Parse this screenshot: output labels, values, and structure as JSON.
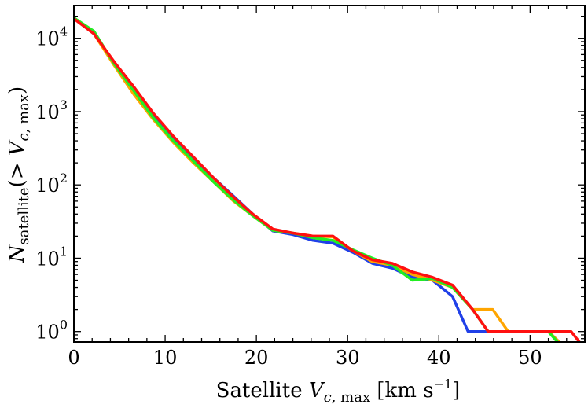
{
  "chart_data": {
    "type": "line",
    "title": "",
    "xlabel": "Satellite V_c,max [km s^-1]",
    "ylabel": "N_satellite(> V_c,max)",
    "xlim": [
      0,
      56
    ],
    "ylim": [
      0.72,
      28000
    ],
    "yscale": "log",
    "grid": false,
    "x_ticks": [
      0,
      10,
      20,
      30,
      40,
      50
    ],
    "y_ticks": [
      1,
      10,
      100,
      1000,
      10000
    ],
    "y_tick_labels": [
      {
        "base": "10",
        "exp": "0"
      },
      {
        "base": "10",
        "exp": "1"
      },
      {
        "base": "10",
        "exp": "2"
      },
      {
        "base": "10",
        "exp": "3"
      },
      {
        "base": "10",
        "exp": "4"
      }
    ],
    "series": [
      {
        "color": "#2040e8",
        "points": [
          [
            0,
            19000
          ],
          [
            2.2,
            11500
          ],
          [
            4.4,
            4600
          ],
          [
            6.6,
            2000
          ],
          [
            8.7,
            900
          ],
          [
            10.9,
            440
          ],
          [
            13.1,
            230
          ],
          [
            15.3,
            125
          ],
          [
            17.5,
            70
          ],
          [
            19.6,
            40
          ],
          [
            21.8,
            23.5
          ],
          [
            24,
            21
          ],
          [
            26.2,
            17.5
          ],
          [
            28.4,
            16
          ],
          [
            30.6,
            12
          ],
          [
            32.7,
            8.5
          ],
          [
            34.9,
            7.3
          ],
          [
            37.1,
            5.5
          ],
          [
            39.3,
            5
          ],
          [
            41.5,
            3
          ],
          [
            43.2,
            1
          ],
          [
            45.4,
            1
          ],
          [
            47.6,
            1
          ],
          [
            49.8,
            1
          ],
          [
            52,
            1
          ],
          [
            53.2,
            0.72
          ]
        ]
      },
      {
        "color": "#ffa500",
        "points": [
          [
            0,
            19000
          ],
          [
            2.2,
            11500
          ],
          [
            4.4,
            4300
          ],
          [
            6.6,
            1700
          ],
          [
            8.7,
            780
          ],
          [
            10.9,
            380
          ],
          [
            13.1,
            200
          ],
          [
            15.3,
            110
          ],
          [
            17.5,
            60
          ],
          [
            19.6,
            38
          ],
          [
            21.8,
            24
          ],
          [
            24,
            22
          ],
          [
            26.2,
            20
          ],
          [
            28.4,
            19.5
          ],
          [
            30.6,
            12.5
          ],
          [
            32.7,
            9
          ],
          [
            34.9,
            8
          ],
          [
            37.1,
            6
          ],
          [
            39.3,
            5
          ],
          [
            41.5,
            4
          ],
          [
            43.7,
            2
          ],
          [
            45.9,
            2
          ],
          [
            47.6,
            1
          ],
          [
            49.8,
            1
          ],
          [
            52,
            1
          ],
          [
            53.2,
            0.72
          ]
        ]
      },
      {
        "color": "#22ee22",
        "points": [
          [
            0,
            19000
          ],
          [
            2.2,
            12500
          ],
          [
            4.4,
            4500
          ],
          [
            6.6,
            1900
          ],
          [
            8.7,
            820
          ],
          [
            10.9,
            400
          ],
          [
            13.1,
            210
          ],
          [
            15.3,
            110
          ],
          [
            17.5,
            62
          ],
          [
            19.6,
            38
          ],
          [
            21.8,
            24
          ],
          [
            24,
            22
          ],
          [
            26.2,
            19
          ],
          [
            28.4,
            17.5
          ],
          [
            30.6,
            13
          ],
          [
            32.7,
            10
          ],
          [
            34.9,
            8
          ],
          [
            37.1,
            5
          ],
          [
            39.3,
            5.3
          ],
          [
            41.5,
            4
          ],
          [
            43.7,
            2
          ],
          [
            45.4,
            1
          ],
          [
            47.6,
            1
          ],
          [
            49.8,
            1
          ],
          [
            52,
            1
          ],
          [
            53,
            0.72
          ]
        ]
      },
      {
        "color": "#ff1010",
        "points": [
          [
            0,
            18500
          ],
          [
            2.2,
            11500
          ],
          [
            4.4,
            4800
          ],
          [
            6.6,
            2150
          ],
          [
            8.7,
            950
          ],
          [
            10.9,
            460
          ],
          [
            13.1,
            240
          ],
          [
            15.3,
            125
          ],
          [
            17.5,
            68
          ],
          [
            19.6,
            40
          ],
          [
            21.8,
            25
          ],
          [
            24,
            22
          ],
          [
            26.2,
            20
          ],
          [
            28.4,
            20
          ],
          [
            30.6,
            12.5
          ],
          [
            32.7,
            9.5
          ],
          [
            34.9,
            8.5
          ],
          [
            37.1,
            6.5
          ],
          [
            39.3,
            5.5
          ],
          [
            41.5,
            4.3
          ],
          [
            43.7,
            2
          ],
          [
            45.4,
            1
          ],
          [
            47.6,
            1
          ],
          [
            49.8,
            1
          ],
          [
            52,
            1
          ],
          [
            54.5,
            1
          ],
          [
            55.4,
            0.72
          ]
        ]
      }
    ]
  }
}
